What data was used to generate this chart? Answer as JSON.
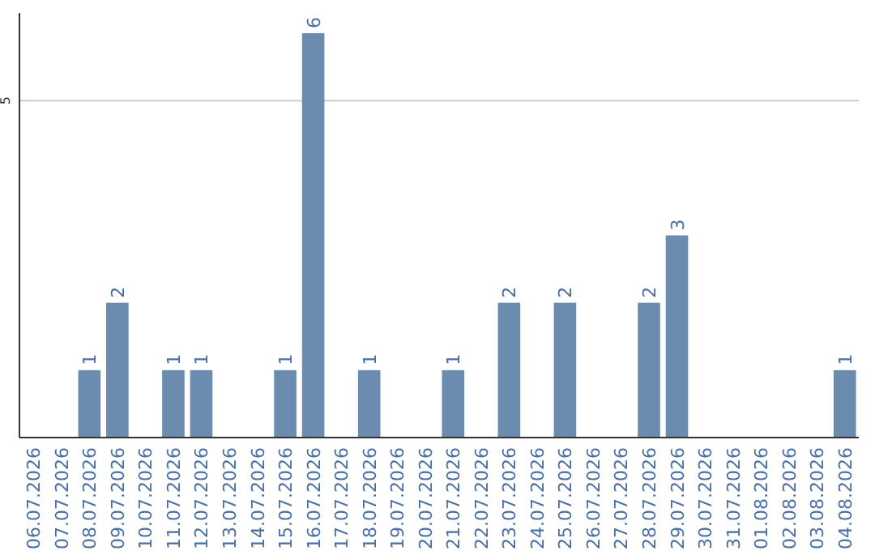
{
  "chart_data": {
    "type": "bar",
    "categories": [
      "06.07.2026",
      "07.07.2026",
      "08.07.2026",
      "09.07.2026",
      "10.07.2026",
      "11.07.2026",
      "12.07.2026",
      "13.07.2026",
      "14.07.2026",
      "15.07.2026",
      "16.07.2026",
      "17.07.2026",
      "18.07.2026",
      "19.07.2026",
      "20.07.2026",
      "21.07.2026",
      "22.07.2026",
      "23.07.2026",
      "24.07.2026",
      "25.07.2026",
      "26.07.2026",
      "27.07.2026",
      "28.07.2026",
      "29.07.2026",
      "30.07.2026",
      "31.07.2026",
      "01.08.2026",
      "02.08.2026",
      "03.08.2026",
      "04.08.2026"
    ],
    "values": [
      0,
      0,
      1,
      2,
      0,
      1,
      1,
      0,
      0,
      1,
      6,
      0,
      1,
      0,
      0,
      1,
      0,
      2,
      0,
      2,
      0,
      0,
      2,
      3,
      0,
      0,
      0,
      0,
      0,
      1
    ],
    "value_labels": [
      null,
      null,
      "1",
      "2",
      null,
      "1",
      "1",
      null,
      null,
      "1",
      "6",
      null,
      "1",
      null,
      null,
      "1",
      null,
      "2",
      null,
      "2",
      null,
      null,
      "2",
      "3",
      null,
      null,
      null,
      null,
      null,
      "1"
    ],
    "color": "#6b8cae",
    "ylim": [
      0,
      6.3
    ],
    "yticks": [
      5
    ],
    "grid": "y"
  }
}
